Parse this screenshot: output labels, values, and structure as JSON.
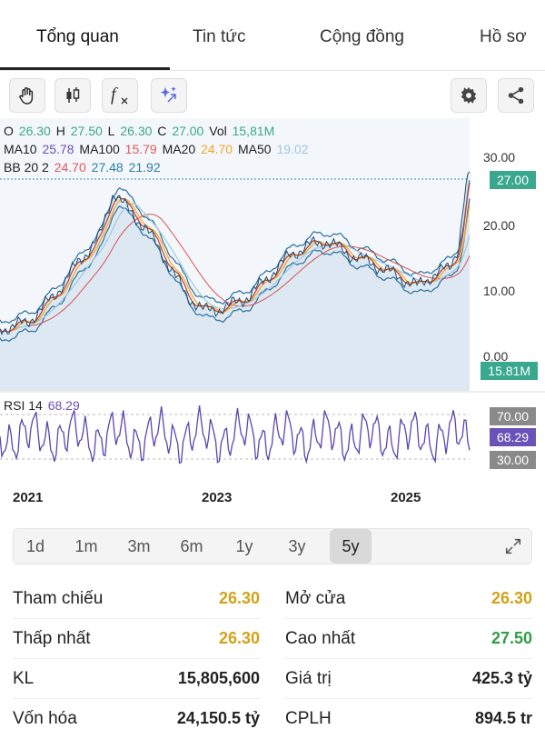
{
  "tabs": [
    "Tổng quan",
    "Tin tức",
    "Cộng đồng",
    "Hồ sơ"
  ],
  "toolbar": {
    "icons": [
      "hand-icon",
      "candlestick-icon",
      "function-icon",
      "sparkle-icon",
      "settings-icon",
      "share-icon"
    ],
    "fx_label": "f"
  },
  "ohlc": {
    "o_label": "O",
    "o": "26.30",
    "h_label": "H",
    "h": "27.50",
    "l_label": "L",
    "l": "26.30",
    "c_label": "C",
    "c": "27.00",
    "vol_label": "Vol",
    "vol": "15,81M"
  },
  "ma": {
    "ma10_label": "MA10",
    "ma10": "25.78",
    "ma100_label": "MA100",
    "ma100": "15.79",
    "ma20_label": "MA20",
    "ma20": "24.70",
    "ma50_label": "MA50",
    "ma50": "19.02"
  },
  "bb": {
    "label": "BB 20 2",
    "mid": "24.70",
    "upper": "27.48",
    "lower": "21.92"
  },
  "rsi": {
    "label": "RSI 14",
    "value": "68.29"
  },
  "axis": {
    "y_ticks": [
      "30.00",
      "20.00",
      "10.00",
      "0.00"
    ],
    "price_tag": "27.00",
    "vol_tag": "15.81M",
    "rsi_ticks": [
      "70.00",
      "68.29",
      "30.00"
    ],
    "years": [
      "2021",
      "2023",
      "2025"
    ]
  },
  "ranges": [
    "1d",
    "1m",
    "3m",
    "6m",
    "1y",
    "3y",
    "5y"
  ],
  "active_range": "5y",
  "stats": {
    "left": [
      {
        "label": "Tham chiếu",
        "value": "26.30",
        "color": "#d4a017"
      },
      {
        "label": "Thấp nhất",
        "value": "26.30",
        "color": "#d4a017"
      },
      {
        "label": "KL",
        "value": "15,805,600",
        "color": "#222222"
      },
      {
        "label": "Vốn hóa",
        "value": "24,150.5 tỷ",
        "color": "#222222"
      }
    ],
    "right": [
      {
        "label": "Mở cửa",
        "value": "26.30",
        "color": "#d4a017"
      },
      {
        "label": "Cao nhất",
        "value": "27.50",
        "color": "#2e9e44"
      },
      {
        "label": "Giá trị",
        "value": "425.3 tỷ",
        "color": "#222222"
      },
      {
        "label": "CPLH",
        "value": "894.5 tr",
        "color": "#222222"
      }
    ]
  },
  "colors": {
    "green": "#3aa88e",
    "red": "#e05a5a",
    "orange": "#f5a623",
    "purple": "#6a52b8",
    "blue": "#2a7fa8",
    "lightblue": "#9ec9e0"
  }
}
